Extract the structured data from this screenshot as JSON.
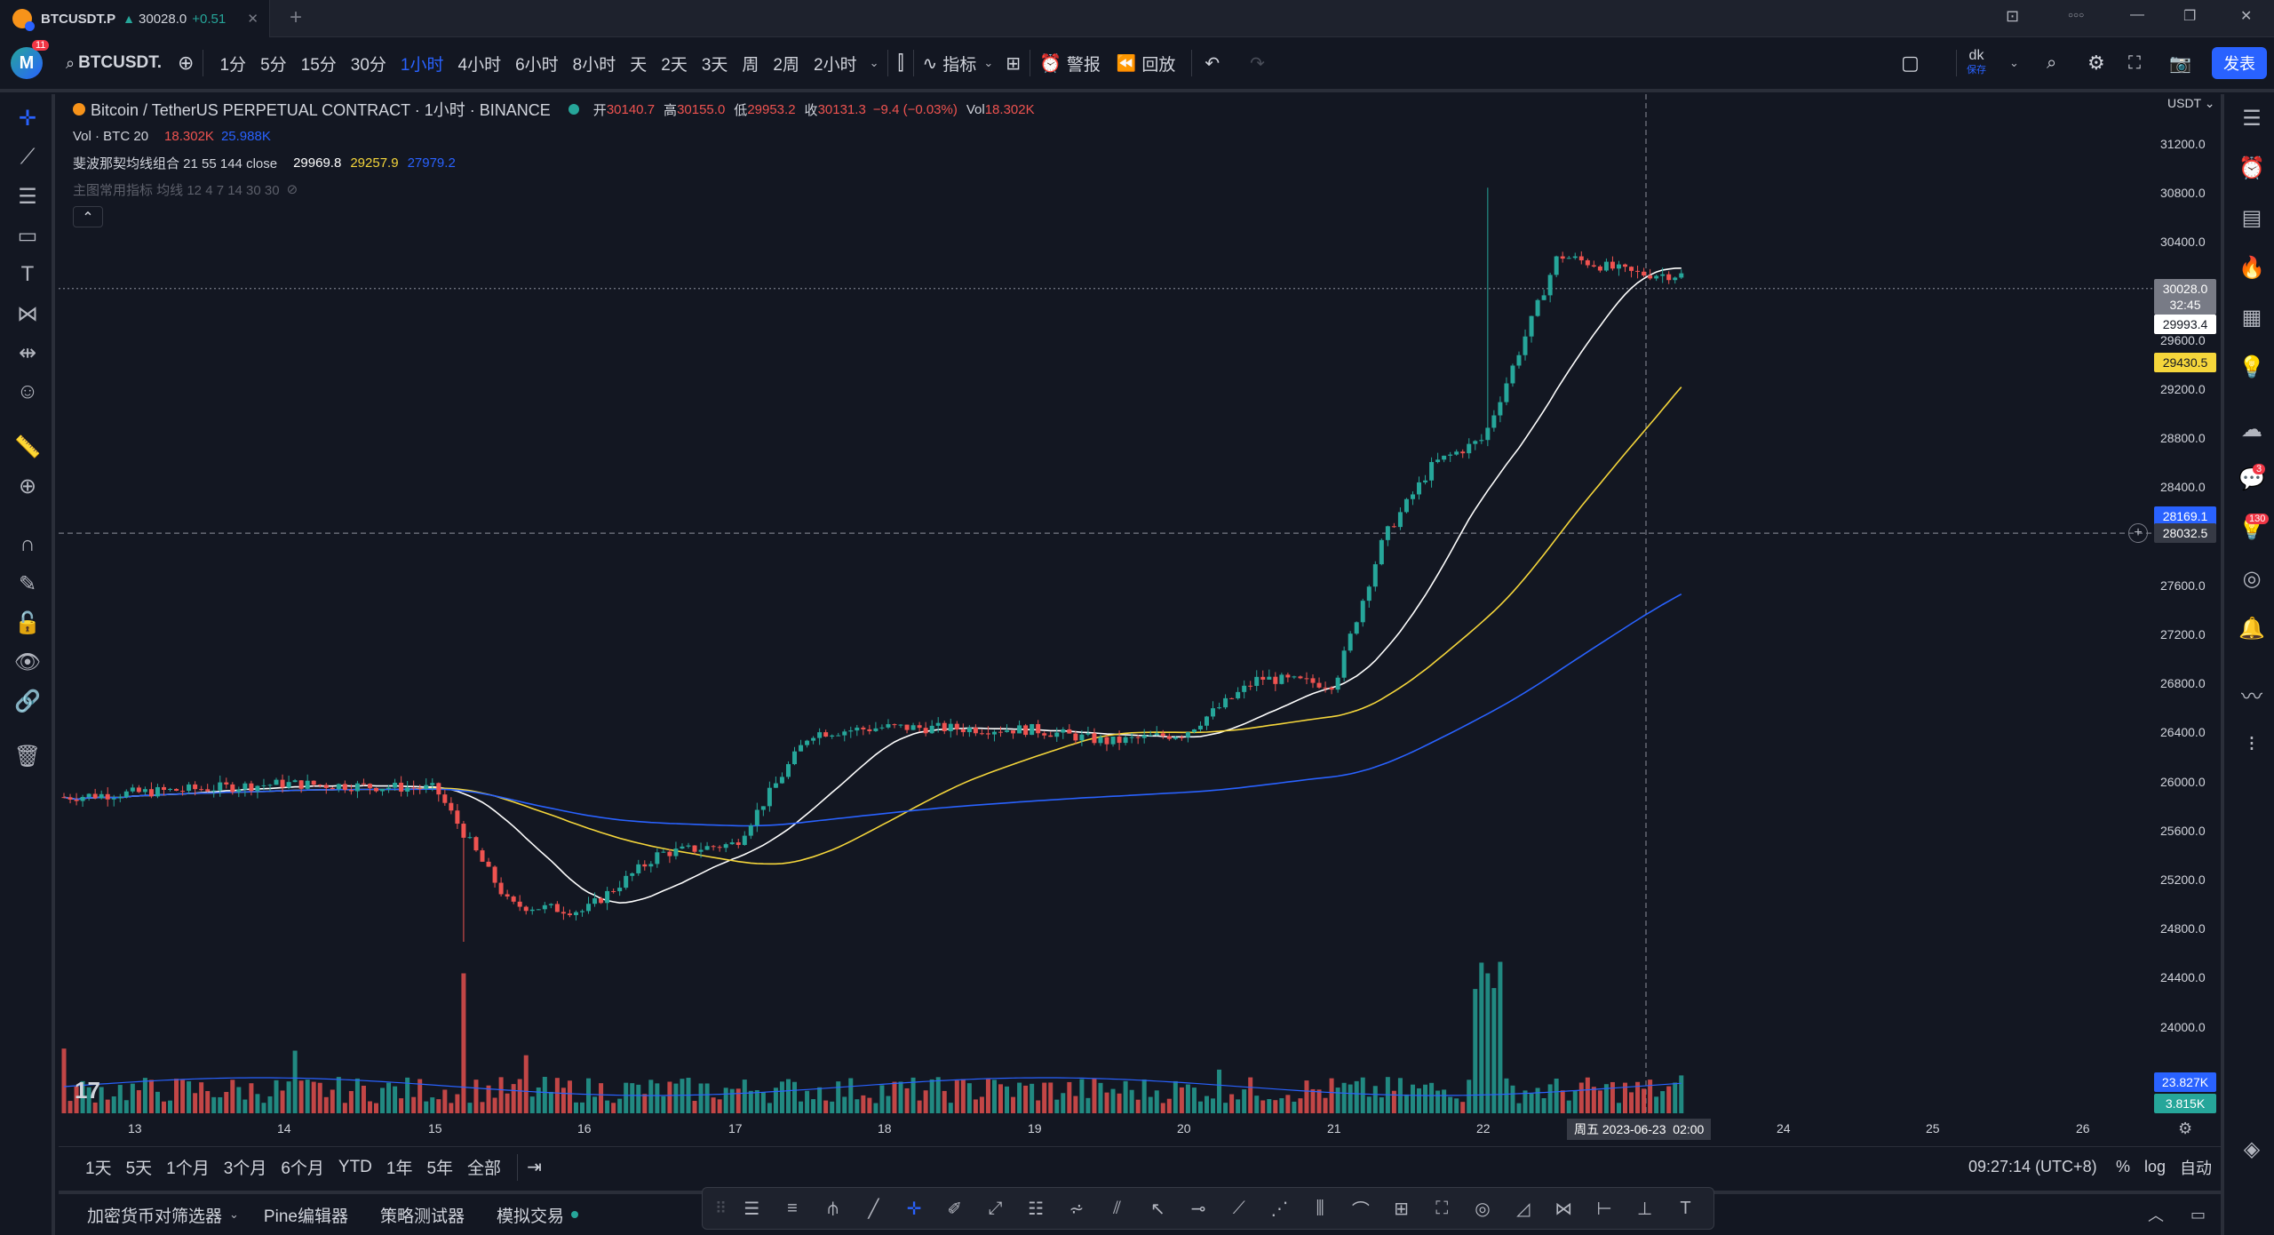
{
  "window": {
    "tab_title": "BTCUSDT.P",
    "tab_price": "30028.0",
    "tab_change": "+0.51",
    "new_tab": "+",
    "controls": [
      "⊡",
      "○○○",
      "—",
      "❐",
      "✕"
    ]
  },
  "toolbar": {
    "avatar_letter": "M",
    "avatar_badge": "11",
    "symbol": "BTCUSDT.",
    "intervals": [
      "1分",
      "5分",
      "15分",
      "30分",
      "1小时",
      "4小时",
      "6小时",
      "8小时",
      "天",
      "2天",
      "3天",
      "周",
      "2周",
      "2小时"
    ],
    "active_interval": "1小时",
    "indicators_label": "指标",
    "alert_label": "警报",
    "replay_label": "回放",
    "layout_name": "dk",
    "layout_sub": "保存",
    "publish_label": "发表"
  },
  "legend": {
    "symbol_name": "Bitcoin / TetherUS PERPETUAL CONTRACT · 1小时 · BINANCE",
    "o_label": "开",
    "o_value": "30140.7",
    "h_label": "高",
    "h_value": "30155.0",
    "l_label": "低",
    "l_value": "29953.2",
    "c_label": "收",
    "c_value": "30131.3",
    "change": "−9.4 (−0.03%)",
    "vol_label": "Vol",
    "vol_value": "18.302K",
    "vol_study": "Vol · BTC 20",
    "vol_study_v1": "18.302K",
    "vol_study_v2": "25.988K",
    "ma_study": "斐波那契均线组合 21 55 144 close",
    "ma_v1": "29969.8",
    "ma_v2": "29257.9",
    "ma_v3": "27979.2",
    "hidden_study": "主图常用指标 均线 12 4 7 14 30 30",
    "collapse": "⌃"
  },
  "price_scale": {
    "currency": "USDT",
    "ticks": [
      "31200.0",
      "30800.0",
      "30400.0",
      "29600.0",
      "29200.0",
      "28800.0",
      "28400.0",
      "27600.0",
      "27200.0",
      "26800.0",
      "26400.0",
      "26000.0",
      "25600.0",
      "25200.0",
      "24800.0",
      "24400.0",
      "24000.0"
    ],
    "last_price": "30028.0",
    "countdown": "32:45",
    "ma21_label": "29993.4",
    "ma55_label": "29430.5",
    "ma144_label": "28169.1",
    "crosshair_label": "28032.5",
    "vol_ma_label": "23.827K",
    "vol_label": "3.815K"
  },
  "time_scale": {
    "ticks": [
      "13",
      "14",
      "15",
      "16",
      "17",
      "18",
      "19",
      "20",
      "21",
      "22",
      "24",
      "25",
      "26"
    ],
    "crosshair_label": "周五 2023-06-23  02:00"
  },
  "range_bar": {
    "ranges": [
      "1天",
      "5天",
      "1个月",
      "3个月",
      "6个月",
      "YTD",
      "1年",
      "5年",
      "全部"
    ],
    "clock": "09:27:14 (UTC+8)",
    "pct": "%",
    "log": "log",
    "auto": "自动"
  },
  "bottom_panel": {
    "tabs": [
      "加密货币对筛选器",
      "Pine编辑器",
      "策略测试器",
      "模拟交易"
    ]
  },
  "right_badges": {
    "chat": "3",
    "ideas": "130"
  },
  "colors": {
    "bg": "#131722",
    "up": "#26a69a",
    "down": "#ef5350",
    "ma21": "#ffffff",
    "ma55": "#f5d63b",
    "ma144": "#2962ff",
    "accent": "#2962ff"
  },
  "chart_data": {
    "type": "candlestick",
    "title": "Bitcoin / TetherUS PERPETUAL CONTRACT · 1小时 · BINANCE",
    "x_axis_days": [
      "13",
      "14",
      "15",
      "16",
      "17",
      "18",
      "19",
      "20",
      "21",
      "22",
      "24",
      "25",
      "26"
    ],
    "ylim": [
      23800,
      31400
    ],
    "approx_close_path": [
      [
        "13",
        25880
      ],
      [
        "14",
        25990
      ],
      [
        "15",
        25950
      ],
      [
        "15",
        25000
      ],
      [
        "16",
        24950
      ],
      [
        "16",
        25420
      ],
      [
        "17",
        25500
      ],
      [
        "17",
        26400
      ],
      [
        "18",
        26450
      ],
      [
        "19",
        26430
      ],
      [
        "19",
        26330
      ],
      [
        "20",
        26400
      ],
      [
        "20",
        26850
      ],
      [
        "21",
        26800
      ],
      [
        "21",
        28000
      ],
      [
        "21",
        28600
      ],
      [
        "22",
        28800
      ],
      [
        "22",
        30300
      ],
      [
        "23",
        30150
      ],
      [
        "23",
        30131
      ]
    ],
    "series": [
      {
        "name": "MA21",
        "last": 29993.4
      },
      {
        "name": "MA55",
        "last": 29430.5
      },
      {
        "name": "MA144",
        "last": 28169.1
      }
    ]
  }
}
